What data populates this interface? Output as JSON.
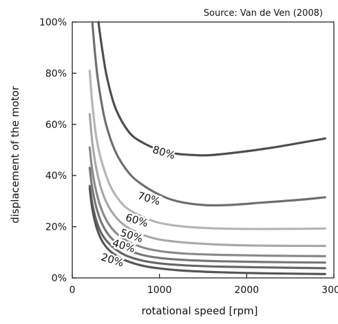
{
  "source": "Source: Van de Ven (2008)",
  "chart_data": {
    "type": "line",
    "xlabel": "rotational speed [rpm]",
    "ylabel": "displacement of the motor",
    "xlim": [
      0,
      3000
    ],
    "ylim": [
      0,
      100
    ],
    "xticks": [
      0,
      1000,
      2000,
      3000
    ],
    "xtick_labels": [
      "0",
      "1000",
      "2000",
      "3000"
    ],
    "yticks": [
      0,
      20,
      40,
      60,
      80,
      100
    ],
    "ytick_labels": [
      "0%",
      "20%",
      "40%",
      "60%",
      "80%",
      "100%"
    ],
    "grid": false,
    "legend": "none",
    "series": [
      {
        "name": "80%",
        "color": "#4d4d4d",
        "label_at": {
          "x": 1050,
          "y": 49
        },
        "x": [
          300,
          340,
          400,
          500,
          650,
          800,
          1000,
          1200,
          1400,
          1600,
          2000,
          2400,
          2900
        ],
        "y": [
          100,
          90,
          78,
          66,
          57,
          53,
          50,
          48.5,
          48,
          48,
          49.5,
          51.5,
          54.5
        ]
      },
      {
        "name": "70%",
        "color": "#6e6e6e",
        "label_at": {
          "x": 880,
          "y": 31
        },
        "x": [
          230,
          260,
          300,
          380,
          500,
          650,
          800,
          1000,
          1200,
          1500,
          1800,
          2200,
          2600,
          2900
        ],
        "y": [
          100,
          88,
          76,
          61,
          49,
          41,
          36.5,
          32.5,
          30,
          28.5,
          28.5,
          29.5,
          30.5,
          31.5
        ]
      },
      {
        "name": "60%",
        "color": "#b5b5b5",
        "label_at": {
          "x": 740,
          "y": 22.5
        },
        "x": [
          200,
          230,
          280,
          350,
          450,
          600,
          800,
          1000,
          1300,
          1700,
          2200,
          2900
        ],
        "y": [
          81,
          68,
          54,
          44,
          35,
          28,
          24,
          21.5,
          20,
          19.3,
          19.1,
          19.3
        ]
      },
      {
        "name": "50%",
        "color": "#a8a8a8",
        "label_at": {
          "x": 680,
          "y": 16.5
        },
        "x": [
          200,
          230,
          280,
          350,
          450,
          600,
          800,
          1000,
          1300,
          1700,
          2200,
          2900
        ],
        "y": [
          64,
          53,
          42,
          33,
          26,
          20.5,
          17,
          15,
          13.8,
          13,
          12.6,
          12.5
        ]
      },
      {
        "name": "",
        "color": "#8a8a8a",
        "x": [
          200,
          230,
          280,
          350,
          450,
          600,
          800,
          1000,
          1300,
          1700,
          2200,
          2900
        ],
        "y": [
          51,
          42,
          33,
          25.5,
          19.5,
          15,
          12,
          10.5,
          9.5,
          9,
          8.7,
          8.5
        ]
      },
      {
        "name": "40%",
        "color": "#777777",
        "label_at": {
          "x": 590,
          "y": 12.5
        },
        "x": [
          200,
          230,
          280,
          350,
          450,
          600,
          800,
          1000,
          1300,
          1700,
          2200,
          2900
        ],
        "y": [
          43,
          35,
          27,
          20.5,
          15.5,
          11.5,
          9,
          7.8,
          7,
          6.5,
          6.2,
          6
        ]
      },
      {
        "name": "",
        "color": "#666666",
        "x": [
          200,
          230,
          280,
          350,
          450,
          600,
          800,
          1000,
          1300,
          1700,
          2200,
          2900
        ],
        "y": [
          36,
          29,
          22,
          16.5,
          12.5,
          9,
          6.8,
          5.7,
          4.9,
          4.4,
          4.1,
          3.8
        ]
      },
      {
        "name": "20%",
        "color": "#555555",
        "label_at": {
          "x": 460,
          "y": 7
        },
        "x": [
          200,
          230,
          280,
          350,
          450,
          600,
          800,
          1000,
          1300,
          1700,
          2200,
          2900
        ],
        "y": [
          35,
          27,
          19.5,
          14,
          10,
          7,
          4.8,
          3.7,
          2.8,
          2.2,
          1.8,
          1.5
        ]
      }
    ]
  }
}
